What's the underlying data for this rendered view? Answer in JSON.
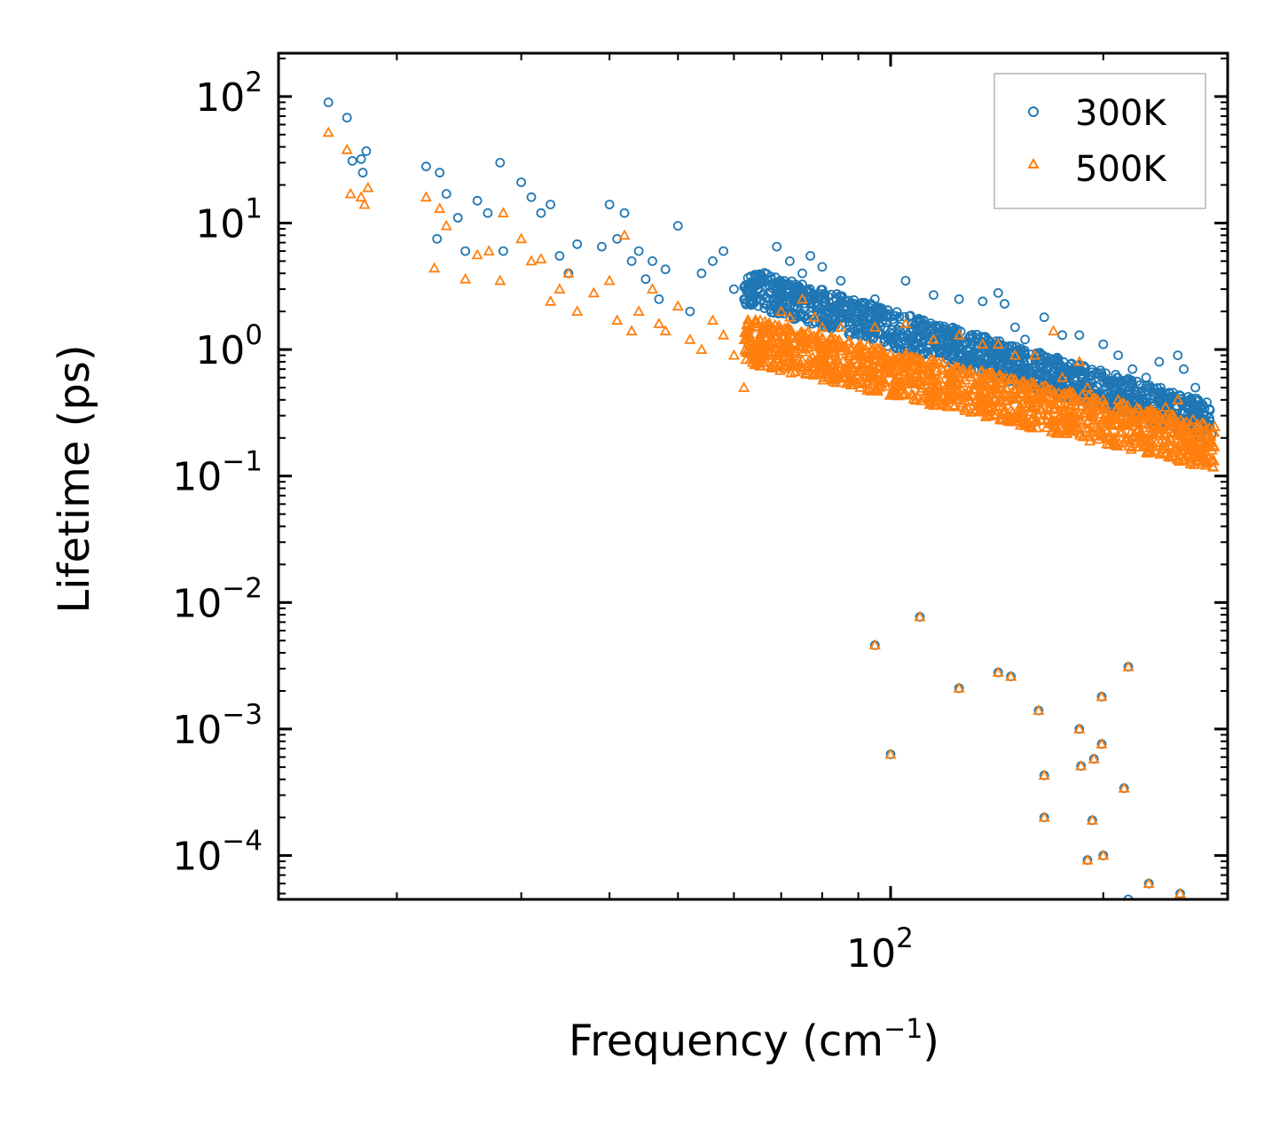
{
  "chart_data": {
    "type": "scatter",
    "xlabel": "Frequency (cm",
    "xlabel_sup": "−1",
    "xlabel_close": ")",
    "ylabel": "Lifetime (ps)",
    "xscale": "log",
    "yscale": "log",
    "xlim": [
      13.6,
      300
    ],
    "ylim": [
      4.5e-05,
      220
    ],
    "x_tick_labels": [
      {
        "base": "10",
        "exp": "2",
        "value": 100
      }
    ],
    "y_tick_labels": [
      {
        "base": "10",
        "exp": "2",
        "value": 100
      },
      {
        "base": "10",
        "exp": "1",
        "value": 10
      },
      {
        "base": "10",
        "exp": "0",
        "value": 1
      },
      {
        "base": "10",
        "exp": "−1",
        "value": 0.1
      },
      {
        "base": "10",
        "exp": "−2",
        "value": 0.01
      },
      {
        "base": "10",
        "exp": "−3",
        "value": 0.001
      },
      {
        "base": "10",
        "exp": "−4",
        "value": 0.0001
      }
    ],
    "legend_position": "top-right",
    "series": [
      {
        "name": "300K",
        "marker": "circle",
        "color": "#1f77b4",
        "main_band": {
          "x_start": 62,
          "x_end": 285,
          "y_at_start": 3.2,
          "y_at_end": 0.27,
          "spread": 1.7
        },
        "points": [
          [
            16,
            90
          ],
          [
            17,
            68
          ],
          [
            17.3,
            31
          ],
          [
            17.8,
            32
          ],
          [
            17.9,
            25
          ],
          [
            18.1,
            37
          ],
          [
            22,
            28
          ],
          [
            22.8,
            7.5
          ],
          [
            23,
            25
          ],
          [
            23.5,
            17
          ],
          [
            24.4,
            11
          ],
          [
            25,
            6
          ],
          [
            26,
            15
          ],
          [
            26.9,
            12
          ],
          [
            28,
            30
          ],
          [
            28.3,
            6
          ],
          [
            30,
            21
          ],
          [
            31,
            16
          ],
          [
            32,
            12
          ],
          [
            33,
            14
          ],
          [
            34,
            5.5
          ],
          [
            35,
            4
          ],
          [
            36,
            6.8
          ],
          [
            39,
            6.5
          ],
          [
            40,
            14
          ],
          [
            41,
            7.5
          ],
          [
            42,
            12
          ],
          [
            43,
            5
          ],
          [
            44,
            6
          ],
          [
            45,
            3.6
          ],
          [
            46,
            5
          ],
          [
            47,
            2.5
          ],
          [
            48,
            4.3
          ],
          [
            50,
            9.5
          ],
          [
            52,
            2
          ],
          [
            54,
            4
          ],
          [
            56,
            5
          ],
          [
            58,
            6
          ],
          [
            60,
            3
          ],
          [
            62,
            2.5
          ],
          [
            65,
            2.2
          ],
          [
            67,
            3.5
          ],
          [
            69,
            6.5
          ],
          [
            72,
            5
          ],
          [
            75,
            4
          ],
          [
            77,
            5.5
          ],
          [
            80,
            4.5
          ],
          [
            85,
            3.5
          ],
          [
            95,
            2.5
          ],
          [
            105,
            3.5
          ],
          [
            115,
            2.7
          ],
          [
            125,
            2.5
          ],
          [
            135,
            2.4
          ],
          [
            142,
            2.8
          ],
          [
            145,
            2.3
          ],
          [
            150,
            1.5
          ],
          [
            155,
            1.2
          ],
          [
            165,
            1.8
          ],
          [
            175,
            1.3
          ],
          [
            185,
            1.3
          ],
          [
            200,
            1.1
          ],
          [
            210,
            0.9
          ],
          [
            220,
            0.7
          ],
          [
            230,
            0.6
          ],
          [
            240,
            0.8
          ],
          [
            255,
            0.9
          ],
          [
            260,
            0.7
          ],
          [
            270,
            0.5
          ],
          [
            280,
            0.3
          ],
          [
            95,
            0.0046
          ],
          [
            100,
            0.00063
          ],
          [
            110,
            0.0077
          ],
          [
            125,
            0.0021
          ],
          [
            142,
            0.0028
          ],
          [
            148,
            0.0026
          ],
          [
            162,
            0.0014
          ],
          [
            165,
            0.00043
          ],
          [
            165,
            0.0002
          ],
          [
            185,
            0.001
          ],
          [
            186,
            0.00051
          ],
          [
            194,
            0.00058
          ],
          [
            193,
            0.00019
          ],
          [
            199,
            0.0018
          ],
          [
            199,
            0.00076
          ],
          [
            200,
            0.0001
          ],
          [
            190,
            9.2e-05
          ],
          [
            214,
            0.00034
          ],
          [
            217,
            0.0031
          ],
          [
            217,
            4.5e-05
          ],
          [
            232,
            6e-05
          ],
          [
            257,
            5e-05
          ]
        ]
      },
      {
        "name": "500K",
        "marker": "triangle",
        "color": "#ff7f0e",
        "main_band": {
          "x_start": 62,
          "x_end": 288,
          "y_at_start": 1.2,
          "y_at_end": 0.17,
          "spread": 1.9
        },
        "points": [
          [
            16,
            52
          ],
          [
            17,
            38
          ],
          [
            17.2,
            17
          ],
          [
            17.8,
            16
          ],
          [
            18,
            14
          ],
          [
            18.2,
            19
          ],
          [
            22,
            16
          ],
          [
            22.6,
            4.4
          ],
          [
            23,
            13
          ],
          [
            23.5,
            9.5
          ],
          [
            25,
            3.6
          ],
          [
            26,
            5.6
          ],
          [
            27,
            6
          ],
          [
            28,
            3.5
          ],
          [
            28.3,
            12
          ],
          [
            30,
            7.5
          ],
          [
            31,
            5
          ],
          [
            32,
            5.2
          ],
          [
            33,
            2.4
          ],
          [
            34,
            3
          ],
          [
            35,
            4
          ],
          [
            36,
            2
          ],
          [
            38,
            2.8
          ],
          [
            40,
            3.5
          ],
          [
            41,
            1.7
          ],
          [
            42,
            8
          ],
          [
            43,
            1.4
          ],
          [
            44,
            2
          ],
          [
            46,
            3
          ],
          [
            47,
            1.6
          ],
          [
            48,
            1.4
          ],
          [
            50,
            2.2
          ],
          [
            52,
            1.2
          ],
          [
            54,
            1
          ],
          [
            56,
            1.7
          ],
          [
            58,
            1.3
          ],
          [
            60,
            0.9
          ],
          [
            62,
            0.5
          ],
          [
            65,
            0.8
          ],
          [
            67,
            1.5
          ],
          [
            70,
            2
          ],
          [
            72,
            1.8
          ],
          [
            75,
            2.5
          ],
          [
            78,
            1.8
          ],
          [
            80,
            1.5
          ],
          [
            85,
            1.5
          ],
          [
            95,
            1.5
          ],
          [
            105,
            1.6
          ],
          [
            115,
            1.2
          ],
          [
            125,
            1.3
          ],
          [
            135,
            1.1
          ],
          [
            142,
            1.1
          ],
          [
            150,
            0.9
          ],
          [
            160,
            0.9
          ],
          [
            170,
            1.4
          ],
          [
            175,
            0.6
          ],
          [
            185,
            0.8
          ],
          [
            190,
            0.5
          ],
          [
            200,
            0.4
          ],
          [
            210,
            0.4
          ],
          [
            220,
            0.25
          ],
          [
            230,
            0.3
          ],
          [
            245,
            0.35
          ],
          [
            255,
            0.4
          ],
          [
            260,
            0.25
          ],
          [
            270,
            0.2
          ],
          [
            285,
            0.16
          ],
          [
            95,
            0.0046
          ],
          [
            100,
            0.00063
          ],
          [
            110,
            0.0077
          ],
          [
            125,
            0.0021
          ],
          [
            142,
            0.0028
          ],
          [
            148,
            0.0026
          ],
          [
            162,
            0.0014
          ],
          [
            165,
            0.00043
          ],
          [
            165,
            0.0002
          ],
          [
            185,
            0.001
          ],
          [
            186,
            0.00051
          ],
          [
            194,
            0.00058
          ],
          [
            193,
            0.00019
          ],
          [
            199,
            0.0018
          ],
          [
            199,
            0.00076
          ],
          [
            200,
            0.0001
          ],
          [
            190,
            9.2e-05
          ],
          [
            214,
            0.00034
          ],
          [
            217,
            0.0031
          ],
          [
            232,
            6e-05
          ],
          [
            257,
            5e-05
          ]
        ]
      }
    ]
  }
}
